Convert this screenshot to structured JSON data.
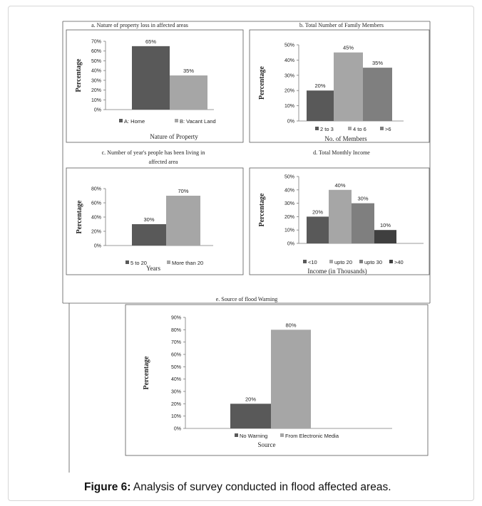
{
  "figure_caption": {
    "label": "Figure 6:",
    "text": " Analysis of survey conducted in flood affected areas."
  },
  "colors": {
    "dark": "#595959",
    "light": "#a6a6a6",
    "mid": "#7f7f7f",
    "darkest": "#3f3f3f",
    "axis": "#7a7a7a",
    "border": "#595959"
  },
  "chart_data": [
    {
      "id": "a",
      "type": "bar",
      "panel_title": "a.    Nature of property loss in affected areas",
      "ylabel": "Percentage",
      "xlabel": "Nature of Property",
      "yticks": [
        "0%",
        "10%",
        "20%",
        "30%",
        "40%",
        "50%",
        "60%",
        "70%"
      ],
      "ylim": [
        0,
        70
      ],
      "series": [
        {
          "name": "A: Home",
          "values": [
            65
          ],
          "labels": [
            "65%"
          ],
          "color": "dark"
        },
        {
          "name": "B: Vacant Land",
          "values": [
            35
          ],
          "labels": [
            "35%"
          ],
          "color": "light"
        }
      ]
    },
    {
      "id": "b",
      "type": "bar",
      "panel_title": "b.    Total Number of Family Members",
      "ylabel": "Percentage",
      "xlabel": "No. of Members",
      "yticks": [
        "0%",
        "10%",
        "20%",
        "30%",
        "40%",
        "50%"
      ],
      "ylim": [
        0,
        50
      ],
      "series": [
        {
          "name": "2 to 3",
          "values": [
            20
          ],
          "labels": [
            "20%"
          ],
          "color": "dark"
        },
        {
          "name": "4 to 6",
          "values": [
            45
          ],
          "labels": [
            "45%"
          ],
          "color": "light"
        },
        {
          "name": ">6",
          "values": [
            35
          ],
          "labels": [
            "35%"
          ],
          "color": "mid"
        }
      ]
    },
    {
      "id": "c",
      "type": "bar",
      "panel_title": "c.    Number of year's people has been living in",
      "panel_title_2": "affected area",
      "ylabel": "Percentage",
      "xlabel": "Years",
      "yticks": [
        "0%",
        "20%",
        "40%",
        "60%",
        "80%"
      ],
      "ylim": [
        0,
        80
      ],
      "series": [
        {
          "name": "5 to 20",
          "values": [
            30
          ],
          "labels": [
            "30%"
          ],
          "color": "dark"
        },
        {
          "name": "More than 20",
          "values": [
            70
          ],
          "labels": [
            "70%"
          ],
          "color": "light"
        }
      ]
    },
    {
      "id": "d",
      "type": "bar",
      "panel_title": "d.    Total Monthly Income",
      "ylabel": "Percentage",
      "xlabel": "Income (in Thousands)",
      "yticks": [
        "0%",
        "10%",
        "20%",
        "30%",
        "40%",
        "50%"
      ],
      "ylim": [
        0,
        50
      ],
      "series": [
        {
          "name": "<10",
          "values": [
            20
          ],
          "labels": [
            "20%"
          ],
          "color": "dark"
        },
        {
          "name": "upto 20",
          "values": [
            40
          ],
          "labels": [
            "40%"
          ],
          "color": "light"
        },
        {
          "name": "upto 30",
          "values": [
            30
          ],
          "labels": [
            "30%"
          ],
          "color": "mid"
        },
        {
          "name": ">40",
          "values": [
            10
          ],
          "labels": [
            "10%"
          ],
          "color": "darkest"
        }
      ]
    },
    {
      "id": "e",
      "type": "bar",
      "panel_title": "e.    Source of flood Warning",
      "ylabel": "Percentage",
      "xlabel": "Source",
      "yticks": [
        "0%",
        "10%",
        "20%",
        "30%",
        "40%",
        "50%",
        "60%",
        "70%",
        "80%",
        "90%"
      ],
      "ylim": [
        0,
        90
      ],
      "series": [
        {
          "name": "No Warning",
          "values": [
            20
          ],
          "labels": [
            "20%"
          ],
          "color": "dark"
        },
        {
          "name": "From Electronic Media",
          "values": [
            80
          ],
          "labels": [
            "80%"
          ],
          "color": "light"
        }
      ]
    }
  ]
}
